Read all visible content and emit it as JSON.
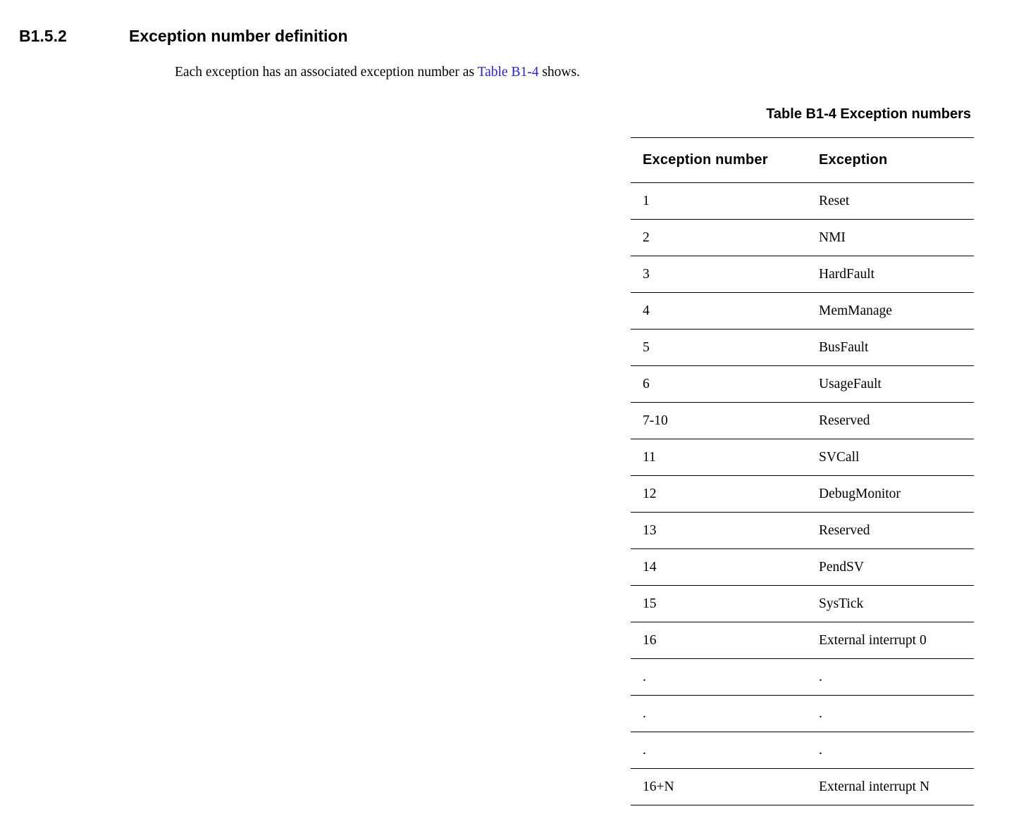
{
  "section": {
    "number": "B1.5.2",
    "title": "Exception number definition"
  },
  "paragraph": {
    "before_link": "Each exception has an associated exception number as ",
    "link_text": "Table B1-4",
    "after_link": " shows."
  },
  "table": {
    "caption": "Table B1-4 Exception numbers",
    "columns": [
      "Exception number",
      "Exception"
    ],
    "rows": [
      [
        "1",
        "Reset"
      ],
      [
        "2",
        "NMI"
      ],
      [
        "3",
        "HardFault"
      ],
      [
        "4",
        "MemManage"
      ],
      [
        "5",
        "BusFault"
      ],
      [
        "6",
        "UsageFault"
      ],
      [
        "7-10",
        "Reserved"
      ],
      [
        "11",
        "SVCall"
      ],
      [
        "12",
        "DebugMonitor"
      ],
      [
        "13",
        "Reserved"
      ],
      [
        "14",
        "PendSV"
      ],
      [
        "15",
        "SysTick"
      ],
      [
        "16",
        "External interrupt 0"
      ],
      [
        ".",
        "."
      ],
      [
        ".",
        "."
      ],
      [
        ".",
        "."
      ],
      [
        "16+N",
        "External interrupt N"
      ]
    ]
  },
  "colors": {
    "link": "#2222dd",
    "text": "#000000",
    "background": "#ffffff",
    "table_border": "#000000"
  }
}
